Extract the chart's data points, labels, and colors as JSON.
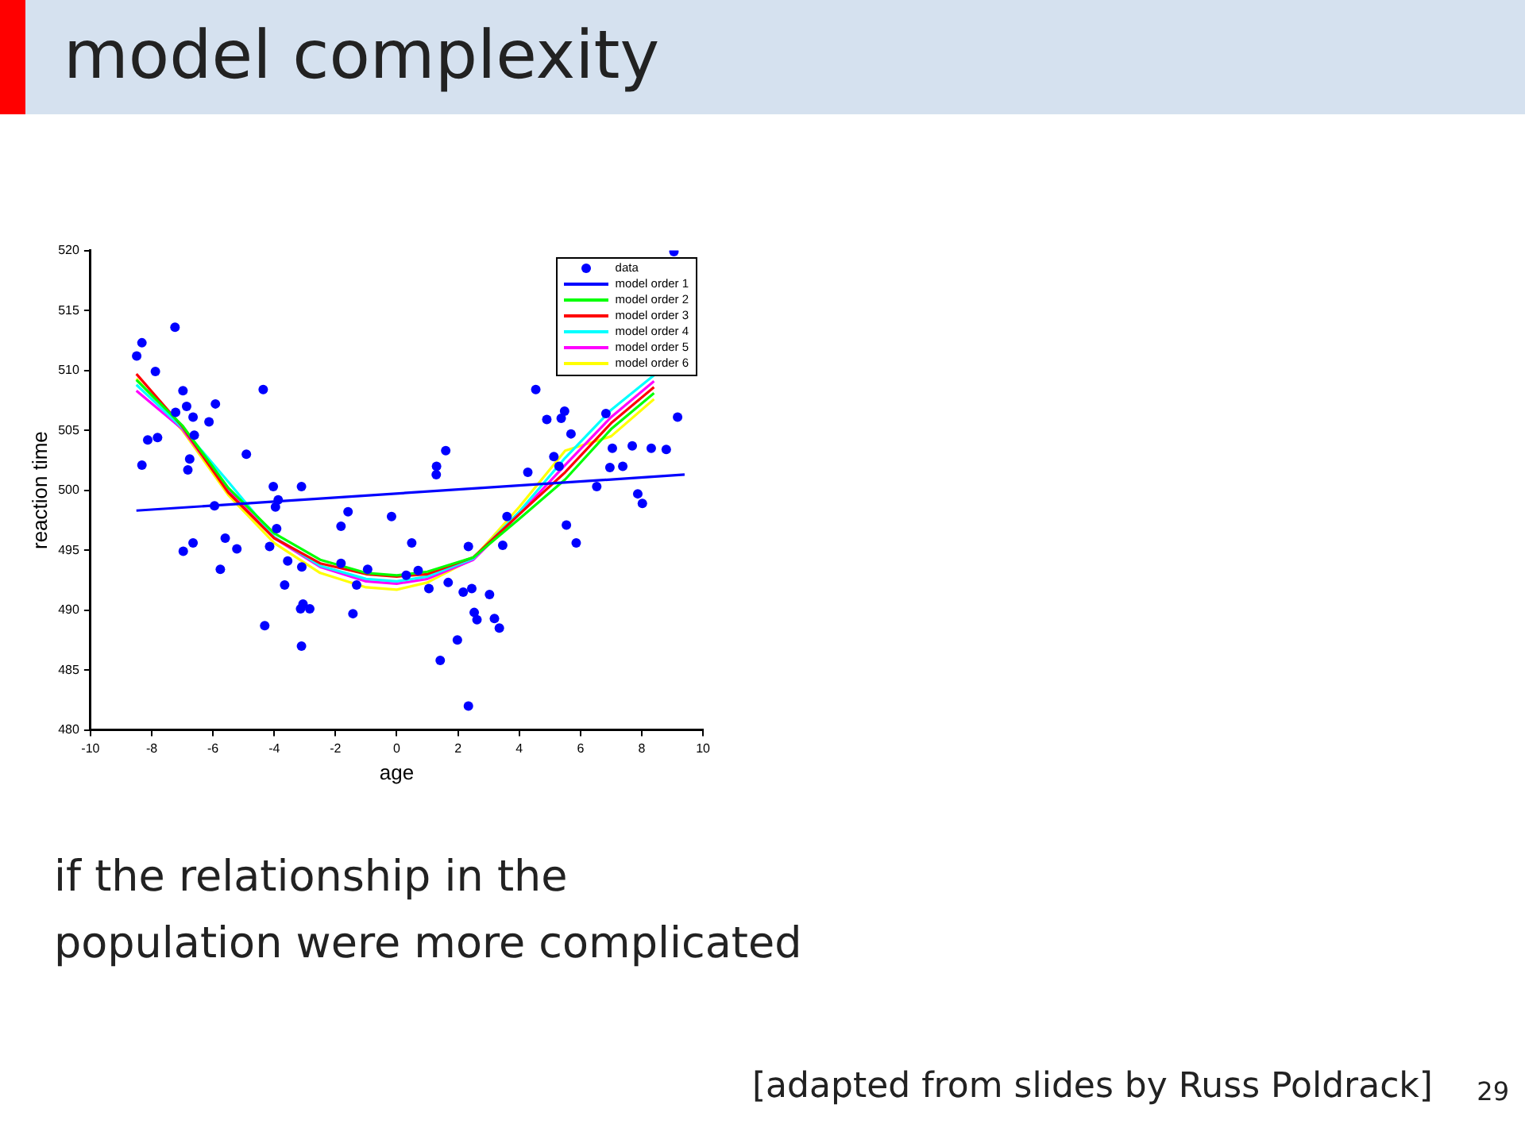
{
  "chart_data": {
    "type": "line",
    "title": "model complexity",
    "xlabel": "age",
    "ylabel": "reaction time",
    "xlim": [
      -10,
      10
    ],
    "xticks": [
      -10,
      -8,
      -6,
      -4,
      -2,
      0,
      2,
      4,
      6,
      8,
      10
    ],
    "ylim": [
      480,
      520
    ],
    "yticks": [
      480,
      485,
      490,
      495,
      500,
      505,
      510,
      515,
      520
    ],
    "grid": false,
    "legend": "top right",
    "annotations": [
      "if the relationship in the\npopulation were more complicated",
      "[adapted from slides by Russ Poldrack]",
      "29"
    ],
    "series": [
      {
        "name": "data",
        "type": "scatter",
        "marker": "circle",
        "color": "#0000ff",
        "x": [
          -8.49,
          -8.32,
          -8.32,
          -8.13,
          -7.81,
          -7.88,
          -7.24,
          -7.22,
          -6.98,
          -6.86,
          -6.82,
          -6.76,
          -6.65,
          -6.61,
          -6.13,
          -5.92,
          -4.91,
          -4.36,
          -4.03,
          -3.11,
          -3.87,
          -5.95,
          -6.97,
          -6.65,
          -5.6,
          -5.22,
          -5.76,
          -3.96,
          -3.92,
          -4.15,
          -1.82,
          -1.59,
          -3.56,
          -3.66,
          -3.1,
          -3.06,
          -3.14,
          -2.84,
          -4.31,
          -3.11,
          -1.43,
          -1.31,
          -1.82,
          -0.95,
          -0.17,
          0.49,
          1.29,
          0.7,
          0.31,
          1.05,
          1.68,
          2.17,
          2.45,
          2.34,
          2.53,
          2.62,
          3.03,
          3.19,
          3.35,
          1.98,
          1.42,
          2.34,
          3.6,
          3.46,
          4.28,
          5.54,
          5.86,
          6.53,
          7.87,
          8.02,
          9.05,
          4.54,
          4.9,
          5.37,
          5.48,
          5.69,
          6.83,
          9.17,
          1.6,
          1.3,
          5.13,
          5.3,
          7.04,
          7.69,
          8.31,
          8.8,
          6.96,
          7.38
        ],
        "values": [
          511.2,
          512.3,
          502.1,
          504.2,
          504.4,
          509.9,
          513.6,
          506.5,
          508.3,
          507.0,
          501.7,
          502.6,
          506.1,
          504.6,
          505.7,
          507.2,
          503.0,
          508.4,
          500.3,
          500.3,
          499.2,
          498.7,
          494.9,
          495.6,
          496.0,
          495.1,
          493.4,
          498.6,
          496.8,
          495.3,
          497.0,
          498.2,
          494.1,
          492.1,
          493.6,
          490.5,
          490.1,
          490.1,
          488.7,
          487.0,
          489.7,
          492.1,
          493.9,
          493.4,
          497.8,
          495.6,
          501.3,
          493.3,
          492.9,
          491.8,
          492.3,
          491.5,
          491.8,
          495.3,
          489.8,
          489.2,
          491.3,
          489.3,
          488.5,
          487.5,
          485.8,
          482.0,
          497.8,
          495.4,
          501.5,
          497.1,
          495.6,
          500.3,
          499.7,
          498.9,
          519.9,
          508.4,
          505.9,
          506.0,
          506.6,
          504.7,
          506.4,
          506.1,
          503.3,
          502.0,
          502.8,
          502.0,
          503.5,
          503.7,
          503.5,
          503.4,
          501.9,
          502.0
        ]
      },
      {
        "name": "model order 1",
        "marker": "none",
        "color": "#0000ff",
        "x": [
          -8.5,
          9.4
        ],
        "values": [
          498.3,
          501.3
        ]
      },
      {
        "name": "model order 2",
        "marker": "none",
        "color": "#00ff00",
        "x": [
          -8.5,
          -7,
          -5.5,
          -4,
          -2.5,
          -1,
          0,
          1,
          2.5,
          4,
          5.5,
          7,
          8.4
        ],
        "values": [
          509.2,
          505.4,
          500.2,
          496.4,
          494.2,
          493.1,
          492.9,
          493.2,
          494.4,
          497.6,
          500.9,
          505.1,
          508.1
        ]
      },
      {
        "name": "model order 3",
        "marker": "none",
        "color": "#ff0000",
        "x": [
          -8.5,
          -7,
          -5.5,
          -4,
          -2.5,
          -1,
          0,
          1,
          2.5,
          4,
          5.5,
          7,
          8.4
        ],
        "values": [
          509.7,
          505.3,
          499.8,
          496.0,
          493.9,
          493.0,
          492.8,
          493.0,
          494.4,
          498.0,
          501.5,
          505.6,
          508.6
        ]
      },
      {
        "name": "model order 4",
        "marker": "none",
        "color": "#00ffff",
        "x": [
          -8.5,
          -7,
          -5.5,
          -4,
          -2.5,
          -1,
          0,
          1,
          2.5,
          4,
          5.5,
          7,
          8.4
        ],
        "values": [
          508.8,
          505.2,
          500.7,
          496.1,
          493.7,
          492.6,
          492.4,
          492.8,
          494.3,
          498.2,
          502.7,
          506.7,
          509.6
        ]
      },
      {
        "name": "model order 5",
        "marker": "none",
        "color": "#ff00ff",
        "x": [
          -8.5,
          -7,
          -5.5,
          -4,
          -2.5,
          -1,
          0,
          1,
          2.5,
          4,
          5.5,
          7,
          8.4
        ],
        "values": [
          508.3,
          505.1,
          500.0,
          496.0,
          493.6,
          492.4,
          492.2,
          492.6,
          494.2,
          498.0,
          502.1,
          506.1,
          509.1
        ]
      },
      {
        "name": "model order 6",
        "marker": "none",
        "color": "#ffff00",
        "x": [
          -8.5,
          -7,
          -5.5,
          -4,
          -2.5,
          -1,
          0,
          1,
          2.5,
          4,
          5.5,
          7,
          8.4
        ],
        "values": [
          509.3,
          505.0,
          499.6,
          495.6,
          493.1,
          491.9,
          491.7,
          492.3,
          494.3,
          498.6,
          503.3,
          504.5,
          507.6
        ]
      }
    ]
  }
}
